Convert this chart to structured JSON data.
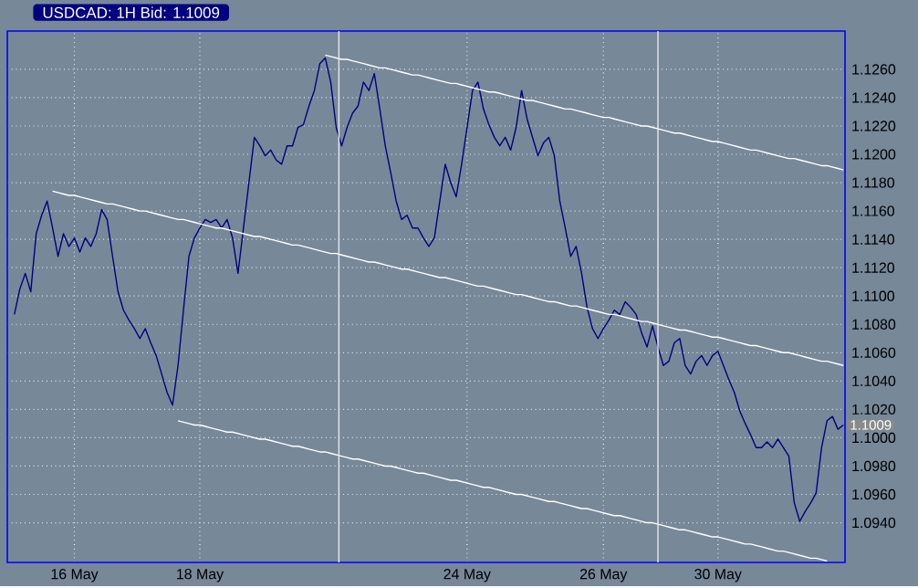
{
  "chart_data": {
    "type": "line",
    "title": "USDCAD: 1H Bid: 1.1009",
    "categories": [
      null,
      null,
      null,
      null,
      null,
      null,
      null,
      null,
      null,
      null,
      null,
      "16 May",
      null,
      null,
      null,
      null,
      null,
      null,
      null,
      null,
      null,
      null,
      null,
      null,
      null,
      null,
      null,
      null,
      null,
      null,
      null,
      null,
      null,
      null,
      "18 May",
      null,
      null,
      null,
      null,
      null,
      null,
      null,
      null,
      null,
      null,
      null,
      null,
      null,
      null,
      null,
      null,
      null,
      null,
      null,
      null,
      null,
      null,
      null,
      null,
      null,
      null,
      null,
      null,
      null,
      null,
      null,
      null,
      null,
      null,
      null,
      null,
      null,
      null,
      null,
      null,
      null,
      null,
      null,
      null,
      null,
      null,
      null,
      null,
      "24 May",
      null,
      null,
      null,
      null,
      null,
      null,
      null,
      null,
      null,
      null,
      null,
      null,
      null,
      null,
      null,
      null,
      null,
      null,
      null,
      null,
      null,
      null,
      null,
      null,
      "26 May",
      null,
      null,
      null,
      null,
      null,
      null,
      null,
      null,
      null,
      null,
      null,
      null,
      null,
      null,
      null,
      null,
      null,
      null,
      null,
      null,
      "30 May",
      null,
      null,
      null,
      null,
      null,
      null,
      null,
      null,
      null,
      null,
      null,
      null,
      null,
      null,
      null,
      null,
      null,
      null,
      null,
      null,
      null,
      null,
      null
    ],
    "ylim": [
      1.0912,
      1.1287
    ],
    "yticks": [
      {
        "value": 1.094,
        "label": "1.0940"
      },
      {
        "value": 1.096,
        "label": "1.0960"
      },
      {
        "value": 1.098,
        "label": "1.0980"
      },
      {
        "value": 1.1,
        "label": "1.1000"
      },
      {
        "value": 1.102,
        "label": "1.1020"
      },
      {
        "value": 1.104,
        "label": "1.1040"
      },
      {
        "value": 1.106,
        "label": "1.1060"
      },
      {
        "value": 1.108,
        "label": "1.1080"
      },
      {
        "value": 1.11,
        "label": "1.1100"
      },
      {
        "value": 1.112,
        "label": "1.1120"
      },
      {
        "value": 1.114,
        "label": "1.1140"
      },
      {
        "value": 1.116,
        "label": "1.1160"
      },
      {
        "value": 1.118,
        "label": "1.1180"
      },
      {
        "value": 1.12,
        "label": "1.1200"
      },
      {
        "value": 1.122,
        "label": "1.1220"
      },
      {
        "value": 1.124,
        "label": "1.1240"
      },
      {
        "value": 1.126,
        "label": "1.1260"
      }
    ],
    "grid": true,
    "series": [
      {
        "color": "#000080",
        "values": [
          1.1087,
          1.1105,
          1.1116,
          1.1103,
          1.1144,
          1.1157,
          1.1167,
          1.1148,
          1.1128,
          1.1144,
          1.1135,
          1.1141,
          1.1131,
          1.1141,
          1.1135,
          1.1144,
          1.1161,
          1.1154,
          1.1128,
          1.1103,
          1.109,
          1.1083,
          1.1077,
          1.107,
          1.1077,
          1.1067,
          1.1058,
          1.1045,
          1.1032,
          1.1023,
          1.1051,
          1.109,
          1.1128,
          1.1141,
          1.1148,
          1.1154,
          1.1152,
          1.1154,
          1.1148,
          1.1154,
          1.1141,
          1.1116,
          1.1148,
          1.118,
          1.1212,
          1.1206,
          1.1199,
          1.1203,
          1.1196,
          1.1193,
          1.1206,
          1.1206,
          1.1219,
          1.1221,
          1.1234,
          1.1245,
          1.1264,
          1.1268,
          1.1251,
          1.1219,
          1.1206,
          1.1219,
          1.1229,
          1.1234,
          1.1251,
          1.1245,
          1.1257,
          1.1232,
          1.1206,
          1.1187,
          1.1167,
          1.1154,
          1.1157,
          1.1148,
          1.1148,
          1.1141,
          1.1135,
          1.1141,
          1.1167,
          1.1193,
          1.118,
          1.117,
          1.1193,
          1.1219,
          1.1245,
          1.1251,
          1.1232,
          1.1221,
          1.1212,
          1.1206,
          1.1212,
          1.1203,
          1.1219,
          1.1245,
          1.1225,
          1.1212,
          1.1199,
          1.1208,
          1.1212,
          1.1199,
          1.1167,
          1.1148,
          1.1128,
          1.1135,
          1.1116,
          1.1092,
          1.1077,
          1.107,
          1.1077,
          1.1083,
          1.109,
          1.1087,
          1.1096,
          1.1092,
          1.1087,
          1.1074,
          1.1064,
          1.1079,
          1.1064,
          1.1051,
          1.1054,
          1.1067,
          1.107,
          1.1051,
          1.1045,
          1.1054,
          1.1058,
          1.1051,
          1.1058,
          1.1061,
          1.1051,
          1.1041,
          1.1032,
          1.1019,
          1.101,
          1.1002,
          1.0993,
          1.0993,
          1.0997,
          1.0993,
          1.0999,
          1.0993,
          1.0987,
          1.0954,
          1.0941,
          1.0948,
          1.0954,
          1.0961,
          1.0993,
          1.1012,
          1.1015,
          1.1006,
          1.1009
        ]
      },
      {
        "color": "#ffffff",
        "values": [
          null,
          null,
          null,
          null,
          null,
          null,
          null,
          null,
          null,
          null,
          null,
          null,
          null,
          null,
          null,
          null,
          null,
          null,
          null,
          null,
          null,
          null,
          null,
          null,
          null,
          null,
          null,
          null,
          null,
          null,
          null,
          null,
          null,
          null,
          null,
          null,
          null,
          null,
          null,
          null,
          null,
          null,
          null,
          null,
          null,
          null,
          null,
          null,
          null,
          null,
          null,
          null,
          null,
          null,
          null,
          null,
          null,
          1.127,
          1.1269,
          1.1268,
          1.1267,
          1.1267,
          1.1266,
          1.1265,
          1.1264,
          1.1263,
          1.1262,
          1.1261,
          1.1261,
          1.126,
          1.1259,
          1.1258,
          1.1257,
          1.1256,
          1.1256,
          1.1255,
          1.1254,
          1.1253,
          1.1252,
          1.1251,
          1.125,
          1.125,
          1.1249,
          1.1248,
          1.1247,
          1.1246,
          1.1245,
          1.1244,
          1.1244,
          1.1243,
          1.1242,
          1.1241,
          1.124,
          1.1239,
          1.1238,
          1.1238,
          1.1237,
          1.1236,
          1.1235,
          1.1234,
          1.1233,
          1.1232,
          1.1232,
          1.1231,
          1.123,
          1.1229,
          1.1228,
          1.1227,
          1.1226,
          1.1226,
          1.1225,
          1.1224,
          1.1223,
          1.1222,
          1.1221,
          1.122,
          1.122,
          1.1219,
          1.1218,
          1.1217,
          1.1216,
          1.1215,
          1.1215,
          1.1214,
          1.1213,
          1.1212,
          1.1211,
          1.121,
          1.1209,
          1.1209,
          1.1208,
          1.1207,
          1.1206,
          1.1205,
          1.1204,
          1.1203,
          1.1203,
          1.1202,
          1.1201,
          1.12,
          1.1199,
          1.1198,
          1.1197,
          1.1197,
          1.1196,
          1.1195,
          1.1194,
          1.1193,
          1.1192,
          1.1192,
          1.1191,
          1.119,
          1.1189
        ]
      },
      {
        "color": "#ffffff",
        "values": [
          null,
          null,
          null,
          null,
          null,
          null,
          null,
          1.1174,
          1.1173,
          1.1172,
          1.1171,
          1.1171,
          1.117,
          1.1169,
          1.1168,
          1.1167,
          1.1166,
          1.1165,
          1.1165,
          1.1164,
          1.1163,
          1.1162,
          1.1161,
          1.116,
          1.116,
          1.1159,
          1.1158,
          1.1157,
          1.1156,
          1.1155,
          1.1154,
          1.1154,
          1.1153,
          1.1152,
          1.1151,
          1.115,
          1.1149,
          1.1148,
          1.1148,
          1.1147,
          1.1146,
          1.1145,
          1.1144,
          1.1143,
          1.1142,
          1.1142,
          1.1141,
          1.114,
          1.1139,
          1.1138,
          1.1137,
          1.1136,
          1.1136,
          1.1135,
          1.1134,
          1.1133,
          1.1132,
          1.1131,
          1.113,
          1.113,
          1.1129,
          1.1128,
          1.1127,
          1.1126,
          1.1125,
          1.1124,
          1.1124,
          1.1123,
          1.1122,
          1.1121,
          1.112,
          1.1119,
          1.1119,
          1.1118,
          1.1117,
          1.1116,
          1.1115,
          1.1114,
          1.1113,
          1.1113,
          1.1112,
          1.1111,
          1.111,
          1.1109,
          1.1108,
          1.1107,
          1.1107,
          1.1106,
          1.1105,
          1.1104,
          1.1103,
          1.1102,
          1.1101,
          1.1101,
          1.11,
          1.1099,
          1.1098,
          1.1097,
          1.1096,
          1.1096,
          1.1095,
          1.1094,
          1.1093,
          1.1093,
          1.1092,
          1.1091,
          1.109,
          1.1089,
          1.1088,
          1.1087,
          1.1087,
          1.1086,
          1.1085,
          1.1084,
          1.1083,
          1.1082,
          1.1082,
          1.1081,
          1.108,
          1.1079,
          1.1078,
          1.1077,
          1.1076,
          1.1076,
          1.1075,
          1.1074,
          1.1073,
          1.1072,
          1.1071,
          1.1071,
          1.107,
          1.1069,
          1.1068,
          1.1067,
          1.1066,
          1.1065,
          1.1065,
          1.1064,
          1.1063,
          1.1062,
          1.1061,
          1.106,
          1.106,
          1.1059,
          1.1058,
          1.1057,
          1.1056,
          1.1055,
          1.1054,
          1.1054,
          1.1053,
          1.1052,
          1.1051
        ]
      },
      {
        "color": "#ffffff",
        "values": [
          null,
          null,
          null,
          null,
          null,
          null,
          null,
          null,
          null,
          null,
          null,
          null,
          null,
          null,
          null,
          null,
          null,
          null,
          null,
          null,
          null,
          null,
          null,
          null,
          null,
          null,
          null,
          null,
          null,
          null,
          1.1012,
          1.1011,
          1.101,
          1.1009,
          1.1009,
          1.1008,
          1.1007,
          1.1006,
          1.1005,
          1.1004,
          1.1004,
          1.1003,
          1.1002,
          1.1001,
          1.1,
          1.0999,
          1.0999,
          1.0998,
          1.0997,
          1.0996,
          1.0995,
          1.0994,
          1.0994,
          1.0993,
          1.0992,
          1.0991,
          1.099,
          1.099,
          1.0989,
          1.0988,
          1.0987,
          1.0986,
          1.0985,
          1.0985,
          1.0984,
          1.0983,
          1.0982,
          1.0981,
          1.098,
          1.098,
          1.0979,
          1.0978,
          1.0977,
          1.0976,
          1.0975,
          1.0975,
          1.0974,
          1.0973,
          1.0972,
          1.0971,
          1.097,
          1.097,
          1.0969,
          1.0968,
          1.0967,
          1.0966,
          1.0965,
          1.0965,
          1.0964,
          1.0963,
          1.0962,
          1.0961,
          1.096,
          1.096,
          1.0959,
          1.0958,
          1.0957,
          1.0956,
          1.0955,
          1.0955,
          1.0954,
          1.0953,
          1.0952,
          1.0951,
          1.095,
          1.095,
          1.0949,
          1.0948,
          1.0947,
          1.0946,
          1.0945,
          1.0945,
          1.0944,
          1.0943,
          1.0942,
          1.0941,
          1.094,
          1.094,
          1.0939,
          1.0938,
          1.0937,
          1.0936,
          1.0935,
          1.0935,
          1.0934,
          1.0933,
          1.0932,
          1.0931,
          1.093,
          1.093,
          1.0929,
          1.0928,
          1.0927,
          1.0926,
          1.0925,
          1.0925,
          1.0924,
          1.0923,
          1.0922,
          1.0921,
          1.092,
          1.092,
          1.0919,
          1.0918,
          1.0917,
          1.0916,
          1.0915,
          1.0915,
          1.0914,
          1.0913,
          null,
          null,
          null
        ]
      }
    ],
    "annotations": [
      "1.1009"
    ]
  }
}
